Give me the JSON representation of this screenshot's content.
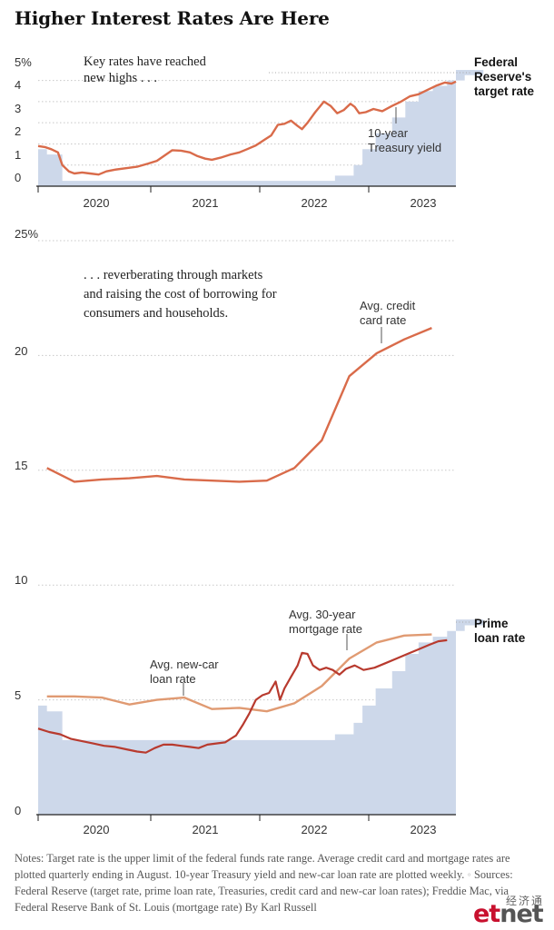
{
  "headline": "Higher Interest Rates Are Here",
  "chart_data": [
    {
      "type": "area",
      "title": "Higher Interest Rates Are Here",
      "ylim": [
        0,
        5.8
      ],
      "yticks": [
        "0",
        "1",
        "2",
        "3",
        "4",
        "5%"
      ],
      "xticks": [
        "2020",
        "2021",
        "2022",
        "2023"
      ],
      "annotation": "Key rates have reached new highs . . .",
      "annotation_lines": [
        "Key rates have reached",
        "new highs . . ."
      ],
      "grid": true,
      "series": [
        {
          "name": "Federal Reserve's target rate",
          "name_lines": [
            "Federal",
            "Reserve's",
            "target rate"
          ],
          "color": "#cdd8ea",
          "kind": "step-area",
          "points": [
            [
              2019.5,
              1.75
            ],
            [
              2019.58,
              1.75
            ],
            [
              2019.58,
              1.5
            ],
            [
              2019.72,
              1.5
            ],
            [
              2019.72,
              0.25
            ],
            [
              2022.2,
              0.25
            ],
            [
              2022.2,
              0.5
            ],
            [
              2022.37,
              0.5
            ],
            [
              2022.37,
              1.0
            ],
            [
              2022.45,
              1.0
            ],
            [
              2022.45,
              1.75
            ],
            [
              2022.57,
              1.75
            ],
            [
              2022.57,
              2.5
            ],
            [
              2022.72,
              2.5
            ],
            [
              2022.72,
              3.25
            ],
            [
              2022.84,
              3.25
            ],
            [
              2022.84,
              4.0
            ],
            [
              2022.96,
              4.0
            ],
            [
              2022.96,
              4.5
            ],
            [
              2023.09,
              4.5
            ],
            [
              2023.09,
              4.75
            ],
            [
              2023.22,
              4.75
            ],
            [
              2023.22,
              5.0
            ],
            [
              2023.38,
              5.0
            ],
            [
              2023.38,
              5.25
            ],
            [
              2023.55,
              5.25
            ],
            [
              2023.55,
              5.5
            ],
            [
              2023.65,
              5.5
            ]
          ]
        },
        {
          "name": "10-year Treasury yield",
          "name_lines": [
            "10-year",
            "Treasury yield"
          ],
          "color": "#d96b4a",
          "kind": "line",
          "points": [
            [
              2019.5,
              1.9
            ],
            [
              2019.56,
              1.85
            ],
            [
              2019.62,
              1.75
            ],
            [
              2019.68,
              1.6
            ],
            [
              2019.72,
              1.0
            ],
            [
              2019.78,
              0.7
            ],
            [
              2019.83,
              0.6
            ],
            [
              2019.9,
              0.65
            ],
            [
              2019.97,
              0.6
            ],
            [
              2020.05,
              0.55
            ],
            [
              2020.12,
              0.7
            ],
            [
              2020.2,
              0.78
            ],
            [
              2020.3,
              0.85
            ],
            [
              2020.4,
              0.92
            ],
            [
              2020.5,
              1.07
            ],
            [
              2020.58,
              1.2
            ],
            [
              2020.65,
              1.45
            ],
            [
              2020.72,
              1.7
            ],
            [
              2020.8,
              1.68
            ],
            [
              2020.88,
              1.6
            ],
            [
              2020.95,
              1.42
            ],
            [
              2021.02,
              1.3
            ],
            [
              2021.08,
              1.25
            ],
            [
              2021.16,
              1.35
            ],
            [
              2021.25,
              1.5
            ],
            [
              2021.33,
              1.6
            ],
            [
              2021.4,
              1.75
            ],
            [
              2021.48,
              1.93
            ],
            [
              2021.56,
              2.2
            ],
            [
              2021.62,
              2.4
            ],
            [
              2021.68,
              2.9
            ],
            [
              2021.74,
              2.95
            ],
            [
              2021.8,
              3.1
            ],
            [
              2021.86,
              2.85
            ],
            [
              2021.9,
              2.7
            ],
            [
              2021.95,
              3.0
            ],
            [
              2022.02,
              3.5
            ],
            [
              2022.1,
              4.0
            ],
            [
              2022.16,
              3.8
            ],
            [
              2022.22,
              3.45
            ],
            [
              2022.28,
              3.6
            ],
            [
              2022.34,
              3.9
            ],
            [
              2022.38,
              3.75
            ],
            [
              2022.42,
              3.45
            ],
            [
              2022.48,
              3.5
            ],
            [
              2022.55,
              3.65
            ],
            [
              2022.63,
              3.55
            ],
            [
              2022.72,
              3.8
            ],
            [
              2022.8,
              4.0
            ],
            [
              2022.88,
              4.25
            ],
            [
              2022.96,
              4.35
            ],
            [
              2023.04,
              4.55
            ],
            [
              2023.12,
              4.75
            ],
            [
              2023.2,
              4.9
            ],
            [
              2023.26,
              4.85
            ],
            [
              2023.3,
              4.95
            ]
          ]
        }
      ]
    },
    {
      "type": "line",
      "ylim": [
        0,
        25
      ],
      "yticks": [
        "0",
        "5",
        "10",
        "15",
        "20",
        "25%"
      ],
      "xticks": [
        "2020",
        "2021",
        "2022",
        "2023"
      ],
      "annotation": ". . . reverberating through markets and raising the cost of borrowing for consumers and households.",
      "annotation_lines": [
        ". . . reverberating through markets",
        "and raising the cost of borrowing for",
        "consumers and households."
      ],
      "grid": true,
      "series": [
        {
          "name": "Prime loan rate",
          "name_lines": [
            "Prime",
            "loan rate"
          ],
          "color": "#cdd8ea",
          "kind": "step-area",
          "points": [
            [
              2019.5,
              4.75
            ],
            [
              2019.58,
              4.75
            ],
            [
              2019.58,
              4.5
            ],
            [
              2019.72,
              4.5
            ],
            [
              2019.72,
              3.25
            ],
            [
              2022.2,
              3.25
            ],
            [
              2022.2,
              3.5
            ],
            [
              2022.37,
              3.5
            ],
            [
              2022.37,
              4.0
            ],
            [
              2022.45,
              4.0
            ],
            [
              2022.45,
              4.75
            ],
            [
              2022.57,
              4.75
            ],
            [
              2022.57,
              5.5
            ],
            [
              2022.72,
              5.5
            ],
            [
              2022.72,
              6.25
            ],
            [
              2022.84,
              6.25
            ],
            [
              2022.84,
              7.0
            ],
            [
              2022.96,
              7.0
            ],
            [
              2022.96,
              7.5
            ],
            [
              2023.09,
              7.5
            ],
            [
              2023.09,
              7.75
            ],
            [
              2023.22,
              7.75
            ],
            [
              2023.22,
              8.0
            ],
            [
              2023.38,
              8.0
            ],
            [
              2023.38,
              8.25
            ],
            [
              2023.55,
              8.25
            ],
            [
              2023.55,
              8.5
            ],
            [
              2023.65,
              8.5
            ]
          ]
        },
        {
          "name": "Avg. credit card rate",
          "name_lines": [
            "Avg. credit",
            "card rate"
          ],
          "color": "#d96b4a",
          "kind": "line",
          "points": [
            [
              2019.58,
              15.1
            ],
            [
              2019.83,
              14.5
            ],
            [
              2020.08,
              14.6
            ],
            [
              2020.33,
              14.65
            ],
            [
              2020.58,
              14.75
            ],
            [
              2020.83,
              14.6
            ],
            [
              2021.08,
              14.55
            ],
            [
              2021.33,
              14.5
            ],
            [
              2021.58,
              14.55
            ],
            [
              2021.83,
              15.1
            ],
            [
              2022.08,
              16.3
            ],
            [
              2022.33,
              19.1
            ],
            [
              2022.58,
              20.1
            ],
            [
              2022.83,
              20.7
            ],
            [
              2023.08,
              21.2
            ]
          ]
        },
        {
          "name": "Avg. new-car loan rate",
          "name_lines": [
            "Avg. new-car",
            "loan rate"
          ],
          "color": "#e09a72",
          "kind": "line",
          "points": [
            [
              2019.58,
              5.15
            ],
            [
              2019.83,
              5.15
            ],
            [
              2020.08,
              5.1
            ],
            [
              2020.33,
              4.8
            ],
            [
              2020.58,
              5.0
            ],
            [
              2020.83,
              5.1
            ],
            [
              2021.08,
              4.6
            ],
            [
              2021.33,
              4.65
            ],
            [
              2021.58,
              4.5
            ],
            [
              2021.83,
              4.85
            ],
            [
              2022.08,
              5.6
            ],
            [
              2022.33,
              6.8
            ],
            [
              2022.58,
              7.5
            ],
            [
              2022.83,
              7.8
            ],
            [
              2023.08,
              7.85
            ]
          ]
        },
        {
          "name": "Avg. 30-year mortgage rate",
          "name_lines": [
            "Avg. 30-year",
            "mortgage rate"
          ],
          "color": "#b83a2e",
          "kind": "line",
          "points": [
            [
              2019.5,
              3.75
            ],
            [
              2019.6,
              3.6
            ],
            [
              2019.7,
              3.5
            ],
            [
              2019.8,
              3.3
            ],
            [
              2019.9,
              3.2
            ],
            [
              2020.0,
              3.1
            ],
            [
              2020.1,
              3.0
            ],
            [
              2020.2,
              2.95
            ],
            [
              2020.3,
              2.85
            ],
            [
              2020.4,
              2.75
            ],
            [
              2020.48,
              2.7
            ],
            [
              2020.56,
              2.9
            ],
            [
              2020.64,
              3.05
            ],
            [
              2020.72,
              3.05
            ],
            [
              2020.8,
              3.0
            ],
            [
              2020.88,
              2.95
            ],
            [
              2020.96,
              2.9
            ],
            [
              2021.04,
              3.05
            ],
            [
              2021.12,
              3.1
            ],
            [
              2021.2,
              3.15
            ],
            [
              2021.3,
              3.45
            ],
            [
              2021.36,
              3.9
            ],
            [
              2021.42,
              4.4
            ],
            [
              2021.48,
              5.0
            ],
            [
              2021.54,
              5.2
            ],
            [
              2021.6,
              5.3
            ],
            [
              2021.66,
              5.8
            ],
            [
              2021.7,
              5.0
            ],
            [
              2021.74,
              5.5
            ],
            [
              2021.8,
              6.0
            ],
            [
              2021.86,
              6.5
            ],
            [
              2021.9,
              7.05
            ],
            [
              2021.95,
              7.0
            ],
            [
              2022.0,
              6.5
            ],
            [
              2022.06,
              6.3
            ],
            [
              2022.12,
              6.4
            ],
            [
              2022.18,
              6.3
            ],
            [
              2022.24,
              6.1
            ],
            [
              2022.3,
              6.35
            ],
            [
              2022.38,
              6.5
            ],
            [
              2022.46,
              6.3
            ],
            [
              2022.56,
              6.4
            ],
            [
              2022.66,
              6.6
            ],
            [
              2022.76,
              6.8
            ],
            [
              2022.86,
              7.0
            ],
            [
              2022.96,
              7.2
            ],
            [
              2023.06,
              7.4
            ],
            [
              2023.14,
              7.55
            ],
            [
              2023.22,
              7.6
            ]
          ]
        }
      ]
    }
  ],
  "notes": {
    "text": "Notes: Target rate is the upper limit of the federal funds rate range. Average credit card and mortgage rates are plotted quarterly ending in August. 10-year Treasury yield and new-car loan rate are plotted weekly.",
    "sources": "Sources: Federal Reserve (target rate, prime loan rate, Treasuries, credit card and new-car loan rates); Freddie Mac, via Federal Reserve Bank of St. Louis (mortgage rate)",
    "byline": "By Karl Russell"
  },
  "watermark": {
    "cn": "经济通",
    "brand_a": "et",
    "brand_b": "net"
  }
}
